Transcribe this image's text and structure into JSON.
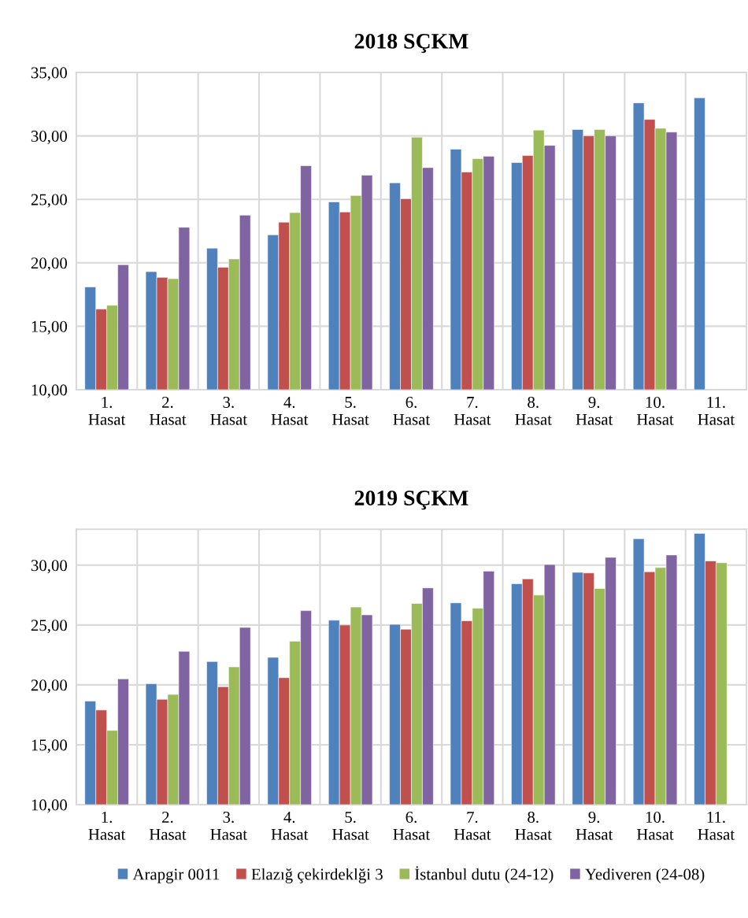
{
  "chart_data": [
    {
      "type": "bar",
      "title": "2018 SÇKM",
      "categories": [
        "1.\nHasat",
        "2.\nHasat",
        "3.\nHasat",
        "4.\nHasat",
        "5.\nHasat",
        "6.\nHasat",
        "7.\nHasat",
        "8.\nHasat",
        "9.\nHasat",
        "10.\nHasat",
        "11.\nHasat"
      ],
      "series": [
        {
          "color": "#4f81bd",
          "values": [
            18.1,
            19.3,
            21.15,
            22.2,
            24.8,
            26.3,
            28.95,
            27.9,
            30.5,
            32.6,
            33.0
          ]
        },
        {
          "color": "#c0504d",
          "values": [
            16.35,
            18.85,
            19.65,
            23.2,
            24.0,
            25.05,
            27.15,
            28.45,
            30.0,
            31.3,
            null
          ]
        },
        {
          "color": "#9bbb59",
          "values": [
            16.65,
            18.75,
            20.3,
            23.95,
            25.3,
            29.9,
            28.2,
            30.45,
            30.5,
            30.6,
            null
          ]
        },
        {
          "color": "#8064a2",
          "values": [
            19.85,
            22.8,
            23.75,
            27.65,
            26.9,
            27.5,
            28.4,
            29.25,
            30.0,
            30.3,
            null
          ]
        }
      ],
      "ylim": [
        10,
        35
      ],
      "yticks": [
        {
          "value": 10,
          "label": "10,00"
        },
        {
          "value": 15,
          "label": "15,00"
        },
        {
          "value": 20,
          "label": "20,00"
        },
        {
          "value": 25,
          "label": "25,00"
        },
        {
          "value": 30,
          "label": "30,00"
        },
        {
          "value": 35,
          "label": "35,00"
        }
      ],
      "grid": true
    },
    {
      "type": "bar",
      "title": "2019 SÇKM",
      "categories": [
        "1.\nHasat",
        "2.\nHasat",
        "3.\nHasat",
        "4.\nHasat",
        "5.\nHasat",
        "6.\nHasat",
        "7.\nHasat",
        "8.\nHasat",
        "9.\nHasat",
        "10.\nHasat",
        "11.\nHasat"
      ],
      "series": [
        {
          "name": "Arapgir 0011",
          "color": "#4f81bd",
          "values": [
            18.65,
            20.1,
            21.95,
            22.3,
            25.4,
            25.05,
            26.85,
            28.45,
            29.4,
            32.2,
            32.65
          ]
        },
        {
          "name": "Elazığ çekirdeklği 3",
          "color": "#c0504d",
          "values": [
            17.9,
            18.8,
            19.85,
            20.6,
            25.0,
            24.65,
            25.35,
            28.85,
            29.35,
            29.45,
            30.35
          ]
        },
        {
          "name": "İstanbul dutu (24-12)",
          "color": "#9bbb59",
          "values": [
            16.2,
            19.2,
            21.5,
            23.65,
            26.5,
            26.8,
            26.4,
            27.5,
            28.05,
            29.8,
            30.2
          ]
        },
        {
          "name": "Yediveren (24-08)",
          "color": "#8064a2",
          "values": [
            20.5,
            22.8,
            24.8,
            26.2,
            25.85,
            28.1,
            29.5,
            30.05,
            30.65,
            30.85,
            null
          ]
        }
      ],
      "ylim": [
        10,
        33
      ],
      "yticks": [
        {
          "value": 10,
          "label": "10,00"
        },
        {
          "value": 15,
          "label": "15,00"
        },
        {
          "value": 20,
          "label": "20,00"
        },
        {
          "value": 25,
          "label": "25,00"
        },
        {
          "value": 30,
          "label": "30,00"
        }
      ],
      "grid": true,
      "legend": "bottom"
    }
  ]
}
